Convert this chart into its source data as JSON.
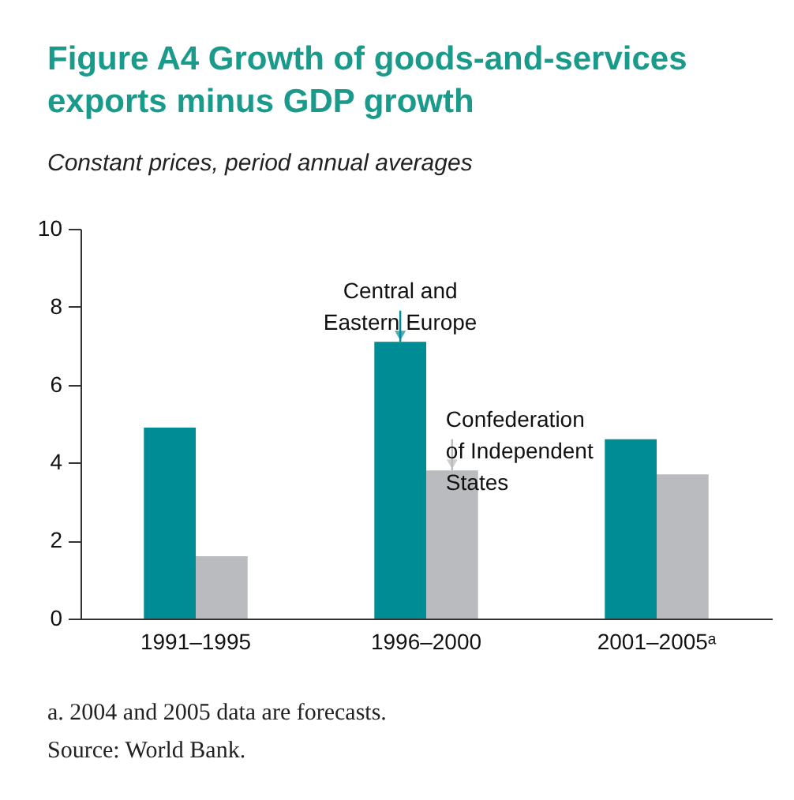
{
  "chart_data": {
    "type": "bar",
    "title": "Figure A4 Growth of goods-and-services exports minus GDP growth",
    "subtitle": "Constant prices, period annual averages",
    "categories": [
      "1991–1995",
      "1996–2000",
      "2001–2005ᵃ"
    ],
    "series": [
      {
        "color": "#008c95",
        "values": [
          4.9,
          7.1,
          4.6
        ]
      },
      {
        "color": "#b9bbbe",
        "values": [
          1.6,
          3.8,
          3.7
        ]
      }
    ],
    "ylim": [
      0,
      10
    ],
    "yticks": [
      0,
      2,
      4,
      6,
      8,
      10
    ],
    "grid": false,
    "legend": false,
    "annotations": [
      {
        "text": "Central and Eastern Europe",
        "x": "1996–2000",
        "y": 7.1
      },
      {
        "text": "Confederation of Independent States",
        "x": "1996–2000",
        "y": 3.8
      },
      "a. 2004 and 2005 data are forecasts.",
      "Source: World Bank."
    ]
  }
}
